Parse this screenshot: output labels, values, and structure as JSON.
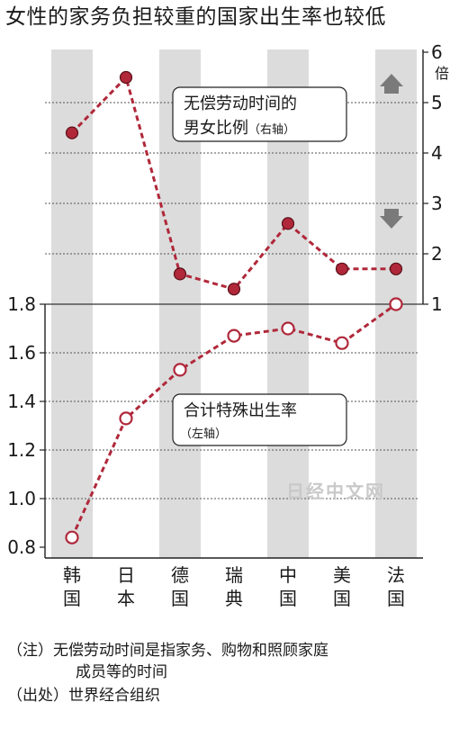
{
  "title": "女性的家务负担较重的国家出生率也较低",
  "chart_data": {
    "type": "line",
    "categories": [
      "韩国",
      "日本",
      "德国",
      "瑞典",
      "中国",
      "美国",
      "法国"
    ],
    "category_label_lines": [
      [
        "韩",
        "国"
      ],
      [
        "日",
        "本"
      ],
      [
        "德",
        "国"
      ],
      [
        "瑞",
        "典"
      ],
      [
        "中",
        "国"
      ],
      [
        "美",
        "国"
      ],
      [
        "法",
        "国"
      ]
    ],
    "shaded_categories": [
      0,
      2,
      4,
      6
    ],
    "series": [
      {
        "name": "无偿劳动时间的男女比例",
        "name_lines": [
          "无偿劳动时间的",
          "男女比例"
        ],
        "axis_note": "（右轴）",
        "axis": "right",
        "values": [
          4.4,
          5.5,
          1.6,
          1.3,
          2.6,
          1.7,
          1.7
        ],
        "color": "#b0283a",
        "marker": "filled"
      },
      {
        "name": "合计特殊出生率",
        "name_lines": [
          "合计特殊出生率"
        ],
        "axis_note": "（左轴）",
        "axis": "left",
        "values": [
          0.84,
          1.33,
          1.53,
          1.67,
          1.7,
          1.64,
          1.8
        ],
        "color": "#b0283a",
        "marker": "hollow"
      }
    ],
    "y_left": {
      "ticks": [
        "0.8",
        "1.0",
        "1.2",
        "1.4",
        "1.6",
        "1.8"
      ],
      "range": [
        0.8,
        1.8
      ]
    },
    "y_right": {
      "ticks": [
        "1",
        "2",
        "3",
        "4",
        "5",
        "6"
      ],
      "range": [
        1,
        6
      ],
      "unit": "倍"
    },
    "grid": true,
    "watermark": "日经中文网"
  },
  "notes": [
    "（注）无偿劳动时间是指家务、购物和照顾家庭",
    "成员等的时间",
    "（出处）世界经合组织"
  ]
}
